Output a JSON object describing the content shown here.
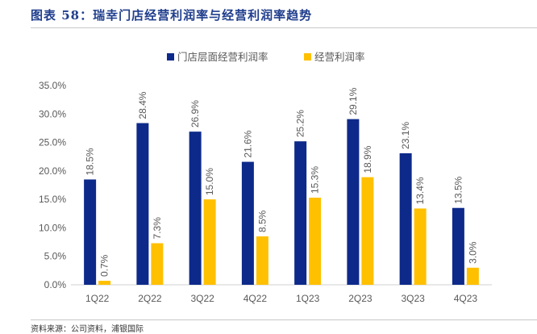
{
  "figure": {
    "title": "图表 58：瑞幸门店经营利润率与经营利润率趋势",
    "source": "资料来源：公司资料，浦银国际"
  },
  "colors": {
    "store_margin": "#0d2a8a",
    "operating_margin": "#ffc000",
    "axis": "#d0d0d0",
    "text": "#595959"
  },
  "chart_data": {
    "type": "bar",
    "title": "",
    "xlabel": "",
    "ylabel": "",
    "categories": [
      "1Q22",
      "2Q22",
      "3Q22",
      "4Q22",
      "1Q23",
      "2Q23",
      "3Q23",
      "4Q23"
    ],
    "series": [
      {
        "name": "门店层面经营利润率",
        "values": [
          18.5,
          28.4,
          26.9,
          21.6,
          25.2,
          29.1,
          23.1,
          13.5
        ],
        "labels": [
          "18.5%",
          "28.4%",
          "26.9%",
          "21.6%",
          "25.2%",
          "29.1%",
          "23.1%",
          "13.5%"
        ]
      },
      {
        "name": "经营利润率",
        "values": [
          0.7,
          7.3,
          15.0,
          8.5,
          15.3,
          18.9,
          13.4,
          3.0
        ],
        "labels": [
          "0.7%",
          "7.3%",
          "15.0%",
          "8.5%",
          "15.3%",
          "18.9%",
          "13.4%",
          "3.0%"
        ]
      }
    ],
    "ylim": [
      0,
      35
    ],
    "yticks": [
      0,
      5,
      10,
      15,
      20,
      25,
      30,
      35
    ],
    "ytick_labels": [
      "0.0%",
      "5.0%",
      "10.0%",
      "15.0%",
      "20.0%",
      "25.0%",
      "30.0%",
      "35.0%"
    ],
    "legend": "top-center",
    "grid": false
  }
}
